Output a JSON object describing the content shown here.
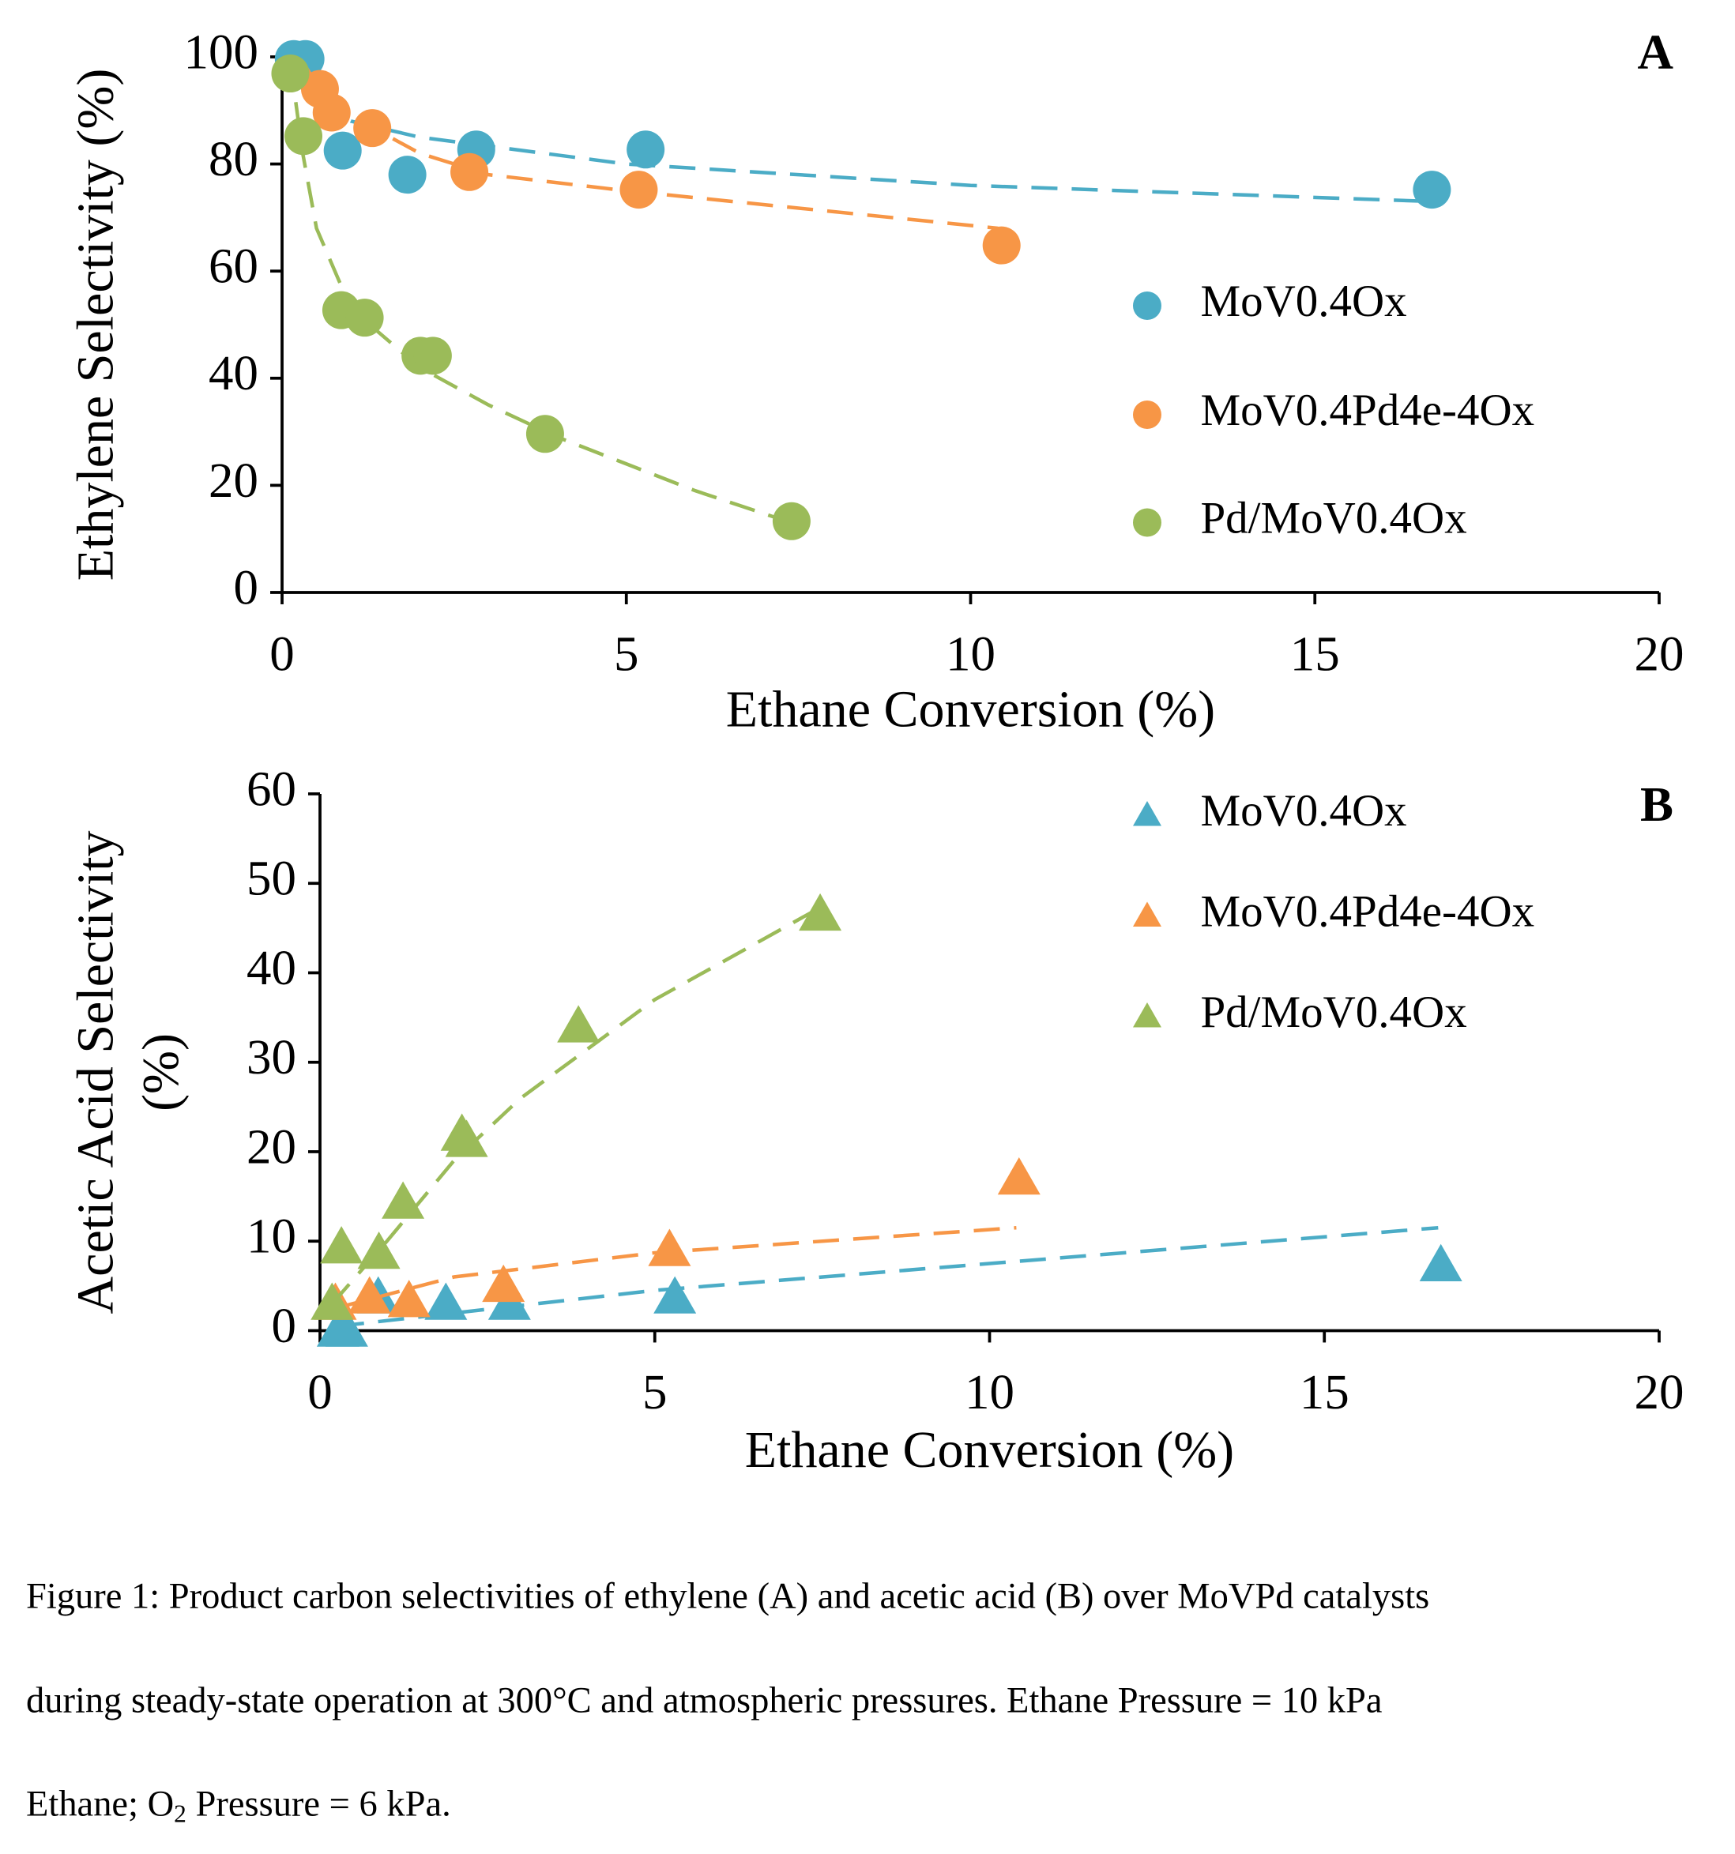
{
  "chart_data": [
    {
      "type": "scatter",
      "panel_label": "A",
      "x_label": "Ethane Conversion (%)",
      "y_label": "Ethylene Selectivity (%)",
      "xlim": [
        0,
        20
      ],
      "xticks": [
        0,
        5,
        10,
        15,
        20
      ],
      "ylim": [
        0,
        100
      ],
      "yticks": [
        0,
        20,
        40,
        60,
        80,
        100
      ],
      "marker": "circle",
      "series": [
        {
          "name": "MoV0.4Ox",
          "color": "#4bacc6",
          "x": [
            0.17,
            0.34,
            0.88,
            1.82,
            2.82,
            5.28,
            16.7
          ],
          "values": [
            99.6,
            99.6,
            82.5,
            78,
            82.7,
            82.7,
            75.2
          ],
          "trend_x": [
            0.2,
            0.5,
            1,
            2,
            5,
            10,
            16.7
          ],
          "trend_y": [
            98,
            91,
            88,
            85,
            80,
            76,
            73
          ]
        },
        {
          "name": "MoV0.4Pd4e-4Ox",
          "color": "#f79646",
          "x": [
            0.55,
            0.72,
            1.31,
            2.72,
            5.18,
            10.45
          ],
          "values": [
            94,
            89.6,
            86.7,
            78.5,
            75.2,
            64.8
          ],
          "trend_x": [
            0.3,
            0.6,
            1,
            2,
            3,
            5,
            10.4
          ],
          "trend_y": [
            99,
            93,
            89,
            82,
            78,
            75,
            68
          ]
        },
        {
          "name": "Pd/MoV0.4Ox",
          "color": "#9bbb59",
          "x": [
            0.12,
            0.31,
            0.86,
            1.2,
            2.01,
            2.19,
            3.82,
            7.4
          ],
          "values": [
            96.9,
            85.2,
            52.7,
            51.3,
            44.2,
            44.2,
            29.6,
            13.3
          ],
          "trend_x": [
            0.12,
            0.3,
            0.5,
            1,
            2,
            3,
            4,
            5,
            6,
            7.4
          ],
          "trend_y": [
            99,
            82,
            68,
            53,
            42,
            35,
            29,
            24,
            19,
            13
          ]
        }
      ]
    },
    {
      "type": "scatter",
      "panel_label": "B",
      "x_label": "Ethane Conversion (%)",
      "y_label": [
        "Acetic Acid Selectivity",
        "(%)"
      ],
      "xlim": [
        0,
        20
      ],
      "xticks": [
        0,
        5,
        10,
        15,
        20
      ],
      "ylim": [
        0,
        60
      ],
      "yticks": [
        0,
        10,
        20,
        30,
        40,
        50,
        60
      ],
      "marker": "triangle",
      "series": [
        {
          "name": "MoV0.4Ox",
          "color": "#4bacc6",
          "x": [
            0.27,
            0.4,
            0.87,
            1.88,
            2.83,
            5.3,
            16.74
          ],
          "values": [
            0,
            0,
            3.7,
            3,
            3,
            3.7,
            7.3
          ],
          "trend_x": [
            0.27,
            5,
            10,
            16.7
          ],
          "trend_y": [
            0.5,
            4.5,
            7.5,
            11.5
          ]
        },
        {
          "name": "MoV0.4Pd4e-4Ox",
          "color": "#f79646",
          "x": [
            0.23,
            0.74,
            1.33,
            2.74,
            5.22,
            10.44
          ],
          "values": [
            3,
            3.7,
            3.3,
            5,
            9,
            17
          ],
          "trend_x": [
            0.23,
            2,
            5,
            10.4
          ],
          "trend_y": [
            2.5,
            6,
            8.7,
            11.5
          ]
        },
        {
          "name": "Pd/MoV0.4Ox",
          "color": "#9bbb59",
          "x": [
            0.18,
            0.32,
            0.88,
            1.24,
            2.12,
            2.19,
            3.86,
            7.47
          ],
          "values": [
            3,
            9.3,
            8.7,
            14.3,
            21.9,
            21.2,
            34,
            46.5
          ],
          "trend_x": [
            0.18,
            1,
            2,
            3,
            5,
            7.4
          ],
          "trend_y": [
            3,
            10,
            19,
            26,
            37,
            47
          ]
        }
      ]
    }
  ],
  "caption": {
    "line1": "Figure 1: Product carbon selectivities of ethylene (A) and acetic acid (B) over MoVPd catalysts",
    "line2": "during steady-state operation at 300°C and atmospheric pressures. Ethane Pressure = 10 kPa",
    "line3_start": "Ethane; O",
    "subscript": "2",
    "line3_end": " Pressure = 6 kPa."
  }
}
